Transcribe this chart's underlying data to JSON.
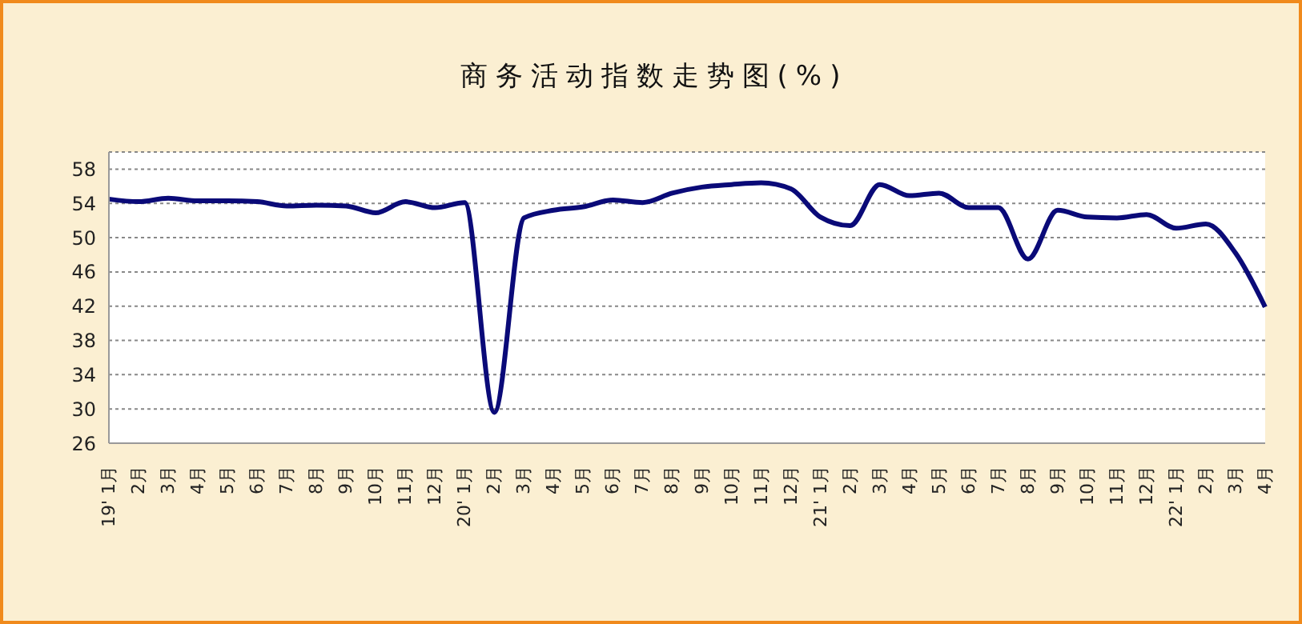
{
  "chart_data": {
    "type": "line",
    "title": "商务活动指数走势图(%)",
    "categories": [
      "19' 1月",
      "2月",
      "3月",
      "4月",
      "5月",
      "6月",
      "7月",
      "8月",
      "9月",
      "10月",
      "11月",
      "12月",
      "20' 1月",
      "2月",
      "3月",
      "4月",
      "5月",
      "6月",
      "7月",
      "8月",
      "9月",
      "10月",
      "11月",
      "12月",
      "21' 1月",
      "2月",
      "3月",
      "4月",
      "5月",
      "6月",
      "7月",
      "8月",
      "9月",
      "10月",
      "11月",
      "12月",
      "22' 1月",
      "2月",
      "3月",
      "4月"
    ],
    "series": [
      {
        "color": "#0a0a78",
        "values": [
          54.5,
          54.2,
          54.6,
          54.3,
          54.3,
          54.2,
          53.7,
          53.8,
          53.7,
          52.9,
          54.2,
          53.5,
          54.1,
          29.6,
          52.3,
          53.2,
          53.6,
          54.4,
          54.1,
          55.2,
          55.9,
          56.2,
          56.4,
          55.7,
          52.4,
          51.4,
          56.2,
          54.9,
          55.2,
          53.5,
          53.5,
          47.5,
          53.2,
          52.4,
          52.3,
          52.7,
          51.1,
          51.6,
          48.2,
          41.9
        ]
      }
    ],
    "ylim": [
      26,
      60
    ],
    "yticks": [
      26,
      30,
      34,
      38,
      42,
      46,
      50,
      54,
      58
    ],
    "grid": "y"
  }
}
